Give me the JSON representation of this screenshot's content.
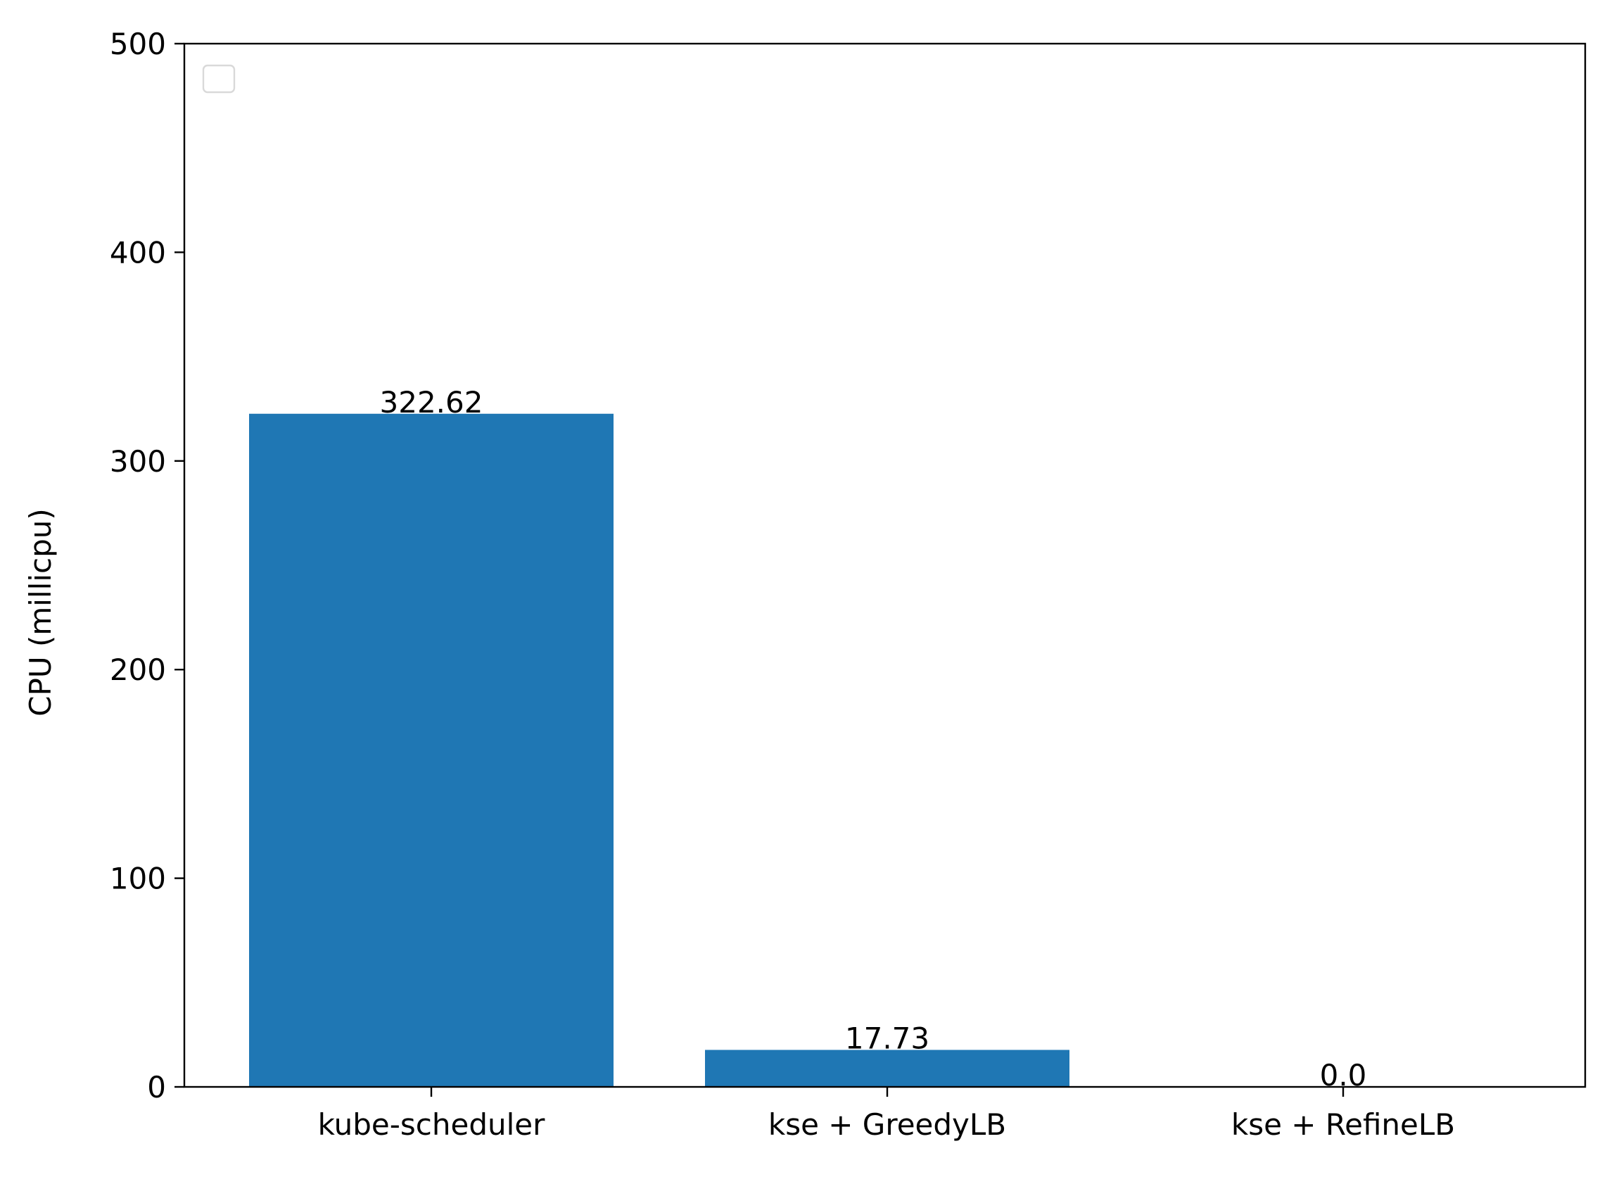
{
  "chart_data": {
    "type": "bar",
    "categories": [
      "kube-scheduler",
      "kse + GreedyLB",
      "kse + RefineLB"
    ],
    "values": [
      322.62,
      17.73,
      0.0
    ],
    "data_labels": [
      "322.62",
      "17.73",
      "0.0"
    ],
    "title": "",
    "xlabel": "",
    "ylabel": "CPU (millicpu)",
    "ylim": [
      0,
      500
    ],
    "yticks": [
      0,
      100,
      200,
      300,
      400,
      500
    ],
    "ytick_labels": [
      "0",
      "100",
      "200",
      "300",
      "400",
      "500"
    ],
    "grid": false,
    "legend": {
      "placement": "top-left",
      "entries": []
    },
    "colors": {
      "bar": "#1f77b4",
      "axis": "#000000",
      "legend_border": "#d9d9d9"
    }
  }
}
